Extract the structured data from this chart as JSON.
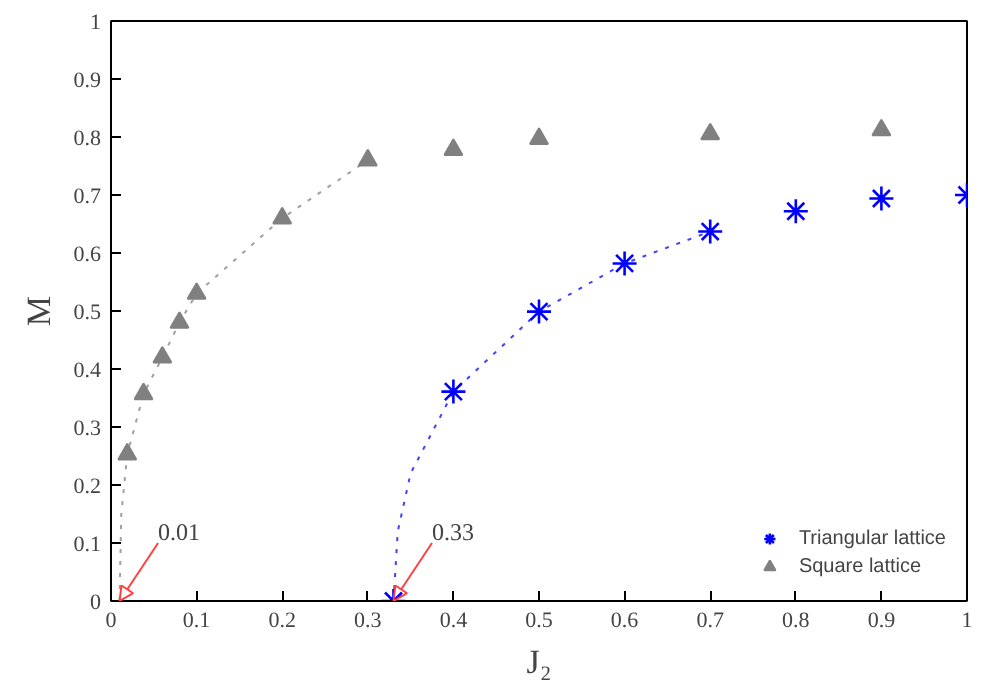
{
  "chart_data": {
    "type": "scatter",
    "xlabel": "J₂",
    "ylabel": "M",
    "xlim": [
      0,
      1
    ],
    "ylim": [
      0,
      1
    ],
    "xticks": [
      0,
      0.1,
      0.2,
      0.3,
      0.4,
      0.5,
      0.6,
      0.7,
      0.8,
      0.9,
      1
    ],
    "yticks": [
      0,
      0.1,
      0.2,
      0.3,
      0.4,
      0.5,
      0.6,
      0.7,
      0.8,
      0.9,
      1
    ],
    "grid": false,
    "legend": "bottom right",
    "series": [
      {
        "type": "line",
        "color": "#a0a0a0",
        "line_style": "dotted",
        "marker": "none",
        "x": [
          0.01,
          0.012,
          0.019,
          0.038,
          0.06,
          0.08,
          0.1,
          0.2,
          0.3
        ],
        "values": [
          0,
          0.15,
          0.253,
          0.357,
          0.42,
          0.48,
          0.53,
          0.66,
          0.76
        ]
      },
      {
        "type": "line",
        "color": "#4040ff",
        "line_style": "dotted",
        "marker": "none",
        "x": [
          0.33,
          0.335,
          0.35,
          0.4,
          0.5,
          0.6,
          0.7
        ],
        "values": [
          0,
          0.12,
          0.22,
          0.361,
          0.499,
          0.582,
          0.637
        ]
      },
      {
        "name": "Triangular lattice",
        "color": "#0000ff",
        "marker": "cross",
        "x": [
          0.33,
          0.4,
          0.5,
          0.6,
          0.7,
          0.8,
          0.9,
          1.0
        ],
        "values": [
          0,
          0.361,
          0.499,
          0.582,
          0.637,
          0.672,
          0.694,
          0.7
        ]
      },
      {
        "name": "Square lattice",
        "color": "#808080",
        "marker": "triangle",
        "x": [
          0.019,
          0.038,
          0.06,
          0.08,
          0.1,
          0.2,
          0.3,
          0.4,
          0.5,
          0.7,
          0.9
        ],
        "values": [
          0.253,
          0.357,
          0.42,
          0.48,
          0.53,
          0.66,
          0.76,
          0.778,
          0.797,
          0.805,
          0.812
        ]
      }
    ],
    "annotations": [
      {
        "text": "0.01",
        "x": 0.01,
        "y": 0
      },
      {
        "text": "0.33",
        "x": 0.33,
        "y": 0
      }
    ]
  }
}
